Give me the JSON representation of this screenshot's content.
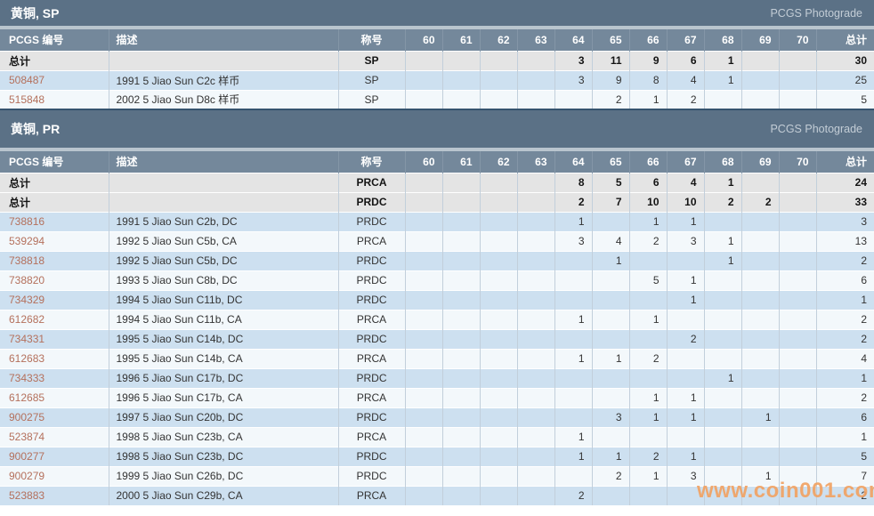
{
  "photograde_label": "PCGS Photograde",
  "watermark": "www.coin001.com",
  "columns": {
    "number": "PCGS 编号",
    "description": "描述",
    "designation": "称号",
    "grades": [
      "60",
      "61",
      "62",
      "63",
      "64",
      "65",
      "66",
      "67",
      "68",
      "69",
      "70"
    ],
    "total": "总计"
  },
  "total_row_label": "总计",
  "colors": {
    "section_bar": "#5b7186",
    "column_header": "#74889b",
    "row_blue": "#cde0f0",
    "row_light": "#f3f8fb",
    "total_row_bg": "#e4e4e4",
    "pcgs_number_link": "#b4705c",
    "watermark_orange": "#f1a263",
    "table_bottom_border": "#35536e"
  },
  "tables": [
    {
      "title": "黄铜, SP",
      "rows": [
        {
          "kind": "total",
          "number": "总计",
          "description": "",
          "designation": "SP",
          "counts": {
            "64": 3,
            "65": 11,
            "66": 9,
            "67": 6,
            "68": 1
          },
          "total": 30
        },
        {
          "kind": "data",
          "number": "508487",
          "description": "1991 5 Jiao Sun C2c 样币",
          "designation": "SP",
          "counts": {
            "64": 3,
            "65": 9,
            "66": 8,
            "67": 4,
            "68": 1
          },
          "total": 25
        },
        {
          "kind": "data",
          "number": "515848",
          "description": "2002 5 Jiao Sun D8c 样币",
          "designation": "SP",
          "counts": {
            "65": 2,
            "66": 1,
            "67": 2
          },
          "total": 5
        }
      ]
    },
    {
      "title": "黄铜, PR",
      "rows": [
        {
          "kind": "total",
          "number": "总计",
          "description": "",
          "designation": "PRCA",
          "counts": {
            "64": 8,
            "65": 5,
            "66": 6,
            "67": 4,
            "68": 1
          },
          "total": 24
        },
        {
          "kind": "total",
          "number": "总计",
          "description": "",
          "designation": "PRDC",
          "counts": {
            "64": 2,
            "65": 7,
            "66": 10,
            "67": 10,
            "68": 2,
            "69": 2
          },
          "total": 33
        },
        {
          "kind": "data",
          "number": "738816",
          "description": "1991 5 Jiao Sun C2b, DC",
          "designation": "PRDC",
          "counts": {
            "64": 1,
            "66": 1,
            "67": 1
          },
          "total": 3
        },
        {
          "kind": "data",
          "number": "539294",
          "description": "1992 5 Jiao Sun C5b, CA",
          "designation": "PRCA",
          "counts": {
            "64": 3,
            "65": 4,
            "66": 2,
            "67": 3,
            "68": 1
          },
          "total": 13
        },
        {
          "kind": "data",
          "number": "738818",
          "description": "1992 5 Jiao Sun C5b, DC",
          "designation": "PRDC",
          "counts": {
            "65": 1,
            "68": 1
          },
          "total": 2
        },
        {
          "kind": "data",
          "number": "738820",
          "description": "1993 5 Jiao Sun C8b, DC",
          "designation": "PRDC",
          "counts": {
            "66": 5,
            "67": 1
          },
          "total": 6
        },
        {
          "kind": "data",
          "number": "734329",
          "description": "1994 5 Jiao Sun C11b, DC",
          "designation": "PRDC",
          "counts": {
            "67": 1
          },
          "total": 1
        },
        {
          "kind": "data",
          "number": "612682",
          "description": "1994 5 Jiao Sun C11b, CA",
          "designation": "PRCA",
          "counts": {
            "64": 1,
            "66": 1
          },
          "total": 2
        },
        {
          "kind": "data",
          "number": "734331",
          "description": "1995 5 Jiao Sun C14b, DC",
          "designation": "PRDC",
          "counts": {
            "67": 2
          },
          "total": 2
        },
        {
          "kind": "data",
          "number": "612683",
          "description": "1995 5 Jiao Sun C14b, CA",
          "designation": "PRCA",
          "counts": {
            "64": 1,
            "65": 1,
            "66": 2
          },
          "total": 4
        },
        {
          "kind": "data",
          "number": "734333",
          "description": "1996 5 Jiao Sun C17b, DC",
          "designation": "PRDC",
          "counts": {
            "68": 1
          },
          "total": 1
        },
        {
          "kind": "data",
          "number": "612685",
          "description": "1996 5 Jiao Sun C17b, CA",
          "designation": "PRCA",
          "counts": {
            "66": 1,
            "67": 1
          },
          "total": 2
        },
        {
          "kind": "data",
          "number": "900275",
          "description": "1997 5 Jiao Sun C20b, DC",
          "designation": "PRDC",
          "counts": {
            "65": 3,
            "66": 1,
            "67": 1,
            "69": 1
          },
          "total": 6
        },
        {
          "kind": "data",
          "number": "523874",
          "description": "1998 5 Jiao Sun C23b, CA",
          "designation": "PRCA",
          "counts": {
            "64": 1
          },
          "total": 1
        },
        {
          "kind": "data",
          "number": "900277",
          "description": "1998 5 Jiao Sun C23b, DC",
          "designation": "PRDC",
          "counts": {
            "64": 1,
            "65": 1,
            "66": 2,
            "67": 1
          },
          "total": 5
        },
        {
          "kind": "data",
          "number": "900279",
          "description": "1999 5 Jiao Sun C26b, DC",
          "designation": "PRDC",
          "counts": {
            "65": 2,
            "66": 1,
            "67": 3,
            "69": 1
          },
          "total": 7
        },
        {
          "kind": "data",
          "number": "523883",
          "description": "2000 5 Jiao Sun C29b, CA",
          "designation": "PRCA",
          "counts": {
            "64": 2
          },
          "total": 2
        }
      ]
    }
  ]
}
